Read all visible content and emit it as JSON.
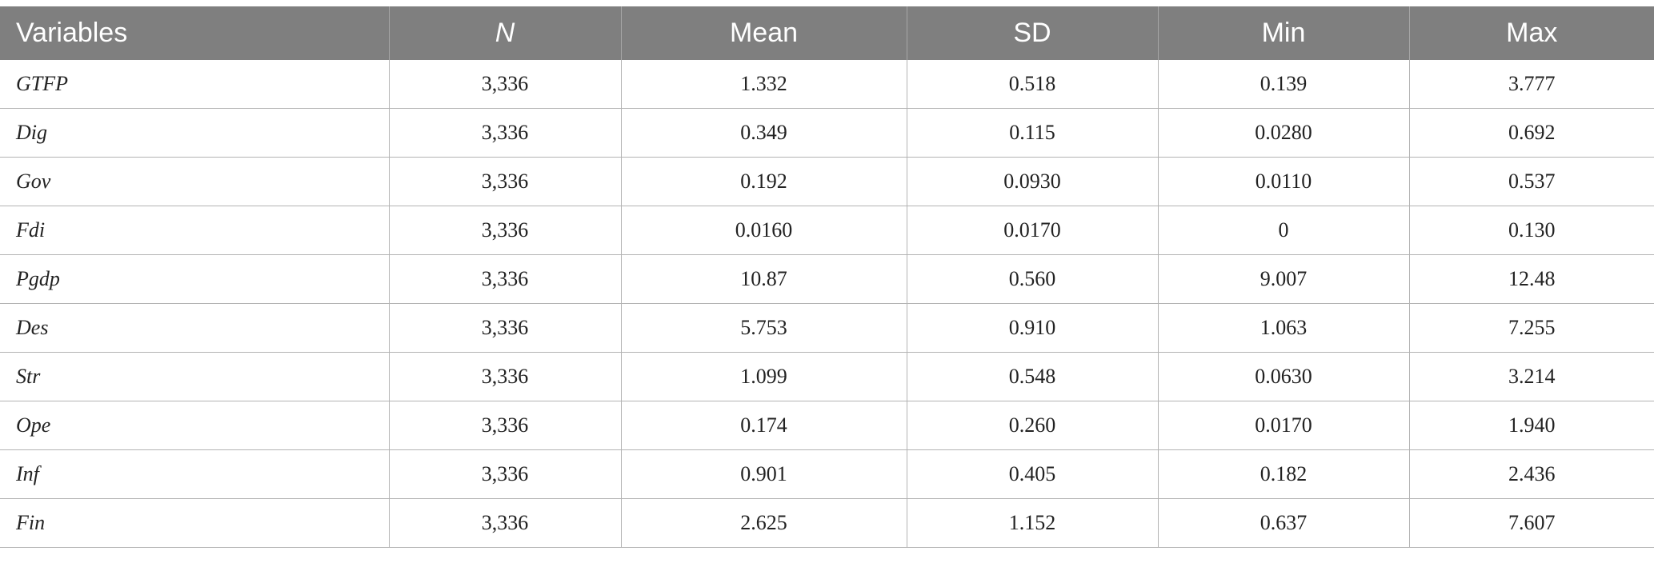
{
  "table": {
    "headers": [
      "Variables",
      "N",
      "Mean",
      "SD",
      "Min",
      "Max"
    ],
    "rows": [
      [
        "GTFP",
        "3,336",
        "1.332",
        "0.518",
        "0.139",
        "3.777"
      ],
      [
        "Dig",
        "3,336",
        "0.349",
        "0.115",
        "0.0280",
        "0.692"
      ],
      [
        "Gov",
        "3,336",
        "0.192",
        "0.0930",
        "0.0110",
        "0.537"
      ],
      [
        "Fdi",
        "3,336",
        "0.0160",
        "0.0170",
        "0",
        "0.130"
      ],
      [
        "Pgdp",
        "3,336",
        "10.87",
        "0.560",
        "9.007",
        "12.48"
      ],
      [
        "Des",
        "3,336",
        "5.753",
        "0.910",
        "1.063",
        "7.255"
      ],
      [
        "Str",
        "3,336",
        "1.099",
        "0.548",
        "0.0630",
        "3.214"
      ],
      [
        "Ope",
        "3,336",
        "0.174",
        "0.260",
        "0.0170",
        "1.940"
      ],
      [
        "Inf",
        "3,336",
        "0.901",
        "0.405",
        "0.182",
        "2.436"
      ],
      [
        "Fin",
        "3,336",
        "2.625",
        "1.152",
        "0.637",
        "7.607"
      ]
    ]
  },
  "colors": {
    "header_bg": "#7f7f7f",
    "header_text": "#ffffff",
    "grid_line": "#b3b3b3"
  }
}
